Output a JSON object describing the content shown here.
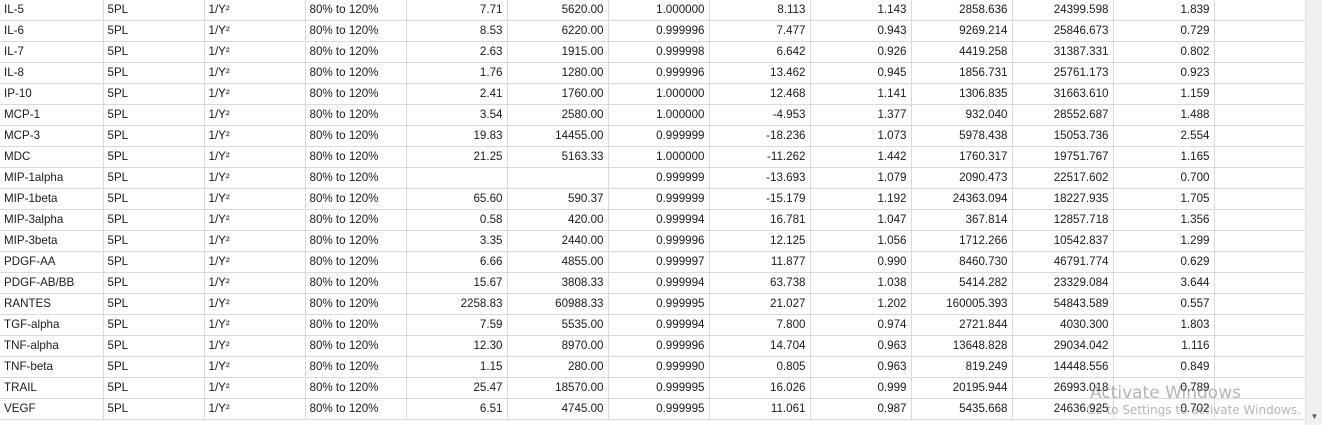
{
  "rows": [
    [
      "IL-5",
      "5PL",
      "1/Y²",
      "80% to 120%",
      "7.71",
      "5620.00",
      "1.000000",
      "8.113",
      "1.143",
      "2858.636",
      "24399.598",
      "1.839",
      ""
    ],
    [
      "IL-6",
      "5PL",
      "1/Y²",
      "80% to 120%",
      "8.53",
      "6220.00",
      "0.999996",
      "7.477",
      "0.943",
      "9269.214",
      "25846.673",
      "0.729",
      ""
    ],
    [
      "IL-7",
      "5PL",
      "1/Y²",
      "80% to 120%",
      "2.63",
      "1915.00",
      "0.999998",
      "6.642",
      "0.926",
      "4419.258",
      "31387.331",
      "0.802",
      ""
    ],
    [
      "IL-8",
      "5PL",
      "1/Y²",
      "80% to 120%",
      "1.76",
      "1280.00",
      "0.999996",
      "13.462",
      "0.945",
      "1856.731",
      "25761.173",
      "0.923",
      ""
    ],
    [
      "IP-10",
      "5PL",
      "1/Y²",
      "80% to 120%",
      "2.41",
      "1760.00",
      "1.000000",
      "12.468",
      "1.141",
      "1306.835",
      "31663.610",
      "1.159",
      ""
    ],
    [
      "MCP-1",
      "5PL",
      "1/Y²",
      "80% to 120%",
      "3.54",
      "2580.00",
      "1.000000",
      "-4.953",
      "1.377",
      "932.040",
      "28552.687",
      "1.488",
      ""
    ],
    [
      "MCP-3",
      "5PL",
      "1/Y²",
      "80% to 120%",
      "19.83",
      "14455.00",
      "0.999999",
      "-18.236",
      "1.073",
      "5978.438",
      "15053.736",
      "2.554",
      ""
    ],
    [
      "MDC",
      "5PL",
      "1/Y²",
      "80% to 120%",
      "21.25",
      "5163.33",
      "1.000000",
      "-11.262",
      "1.442",
      "1760.317",
      "19751.767",
      "1.165",
      ""
    ],
    [
      "MIP-1alpha",
      "5PL",
      "1/Y²",
      "80% to 120%",
      "",
      "",
      "0.999999",
      "-13.693",
      "1.079",
      "2090.473",
      "22517.602",
      "0.700",
      ""
    ],
    [
      "MIP-1beta",
      "5PL",
      "1/Y²",
      "80% to 120%",
      "65.60",
      "590.37",
      "0.999999",
      "-15.179",
      "1.192",
      "24363.094",
      "18227.935",
      "1.705",
      ""
    ],
    [
      "MIP-3alpha",
      "5PL",
      "1/Y²",
      "80% to 120%",
      "0.58",
      "420.00",
      "0.999994",
      "16.781",
      "1.047",
      "367.814",
      "12857.718",
      "1.356",
      ""
    ],
    [
      "MIP-3beta",
      "5PL",
      "1/Y²",
      "80% to 120%",
      "3.35",
      "2440.00",
      "0.999996",
      "12.125",
      "1.056",
      "1712.266",
      "10542.837",
      "1.299",
      ""
    ],
    [
      "PDGF-AA",
      "5PL",
      "1/Y²",
      "80% to 120%",
      "6.66",
      "4855.00",
      "0.999997",
      "11.877",
      "0.990",
      "8460.730",
      "46791.774",
      "0.629",
      ""
    ],
    [
      "PDGF-AB/BB",
      "5PL",
      "1/Y²",
      "80% to 120%",
      "15.67",
      "3808.33",
      "0.999994",
      "63.738",
      "1.038",
      "5414.282",
      "23329.084",
      "3.644",
      ""
    ],
    [
      "RANTES",
      "5PL",
      "1/Y²",
      "80% to 120%",
      "2258.83",
      "60988.33",
      "0.999995",
      "21.027",
      "1.202",
      "160005.393",
      "54843.589",
      "0.557",
      ""
    ],
    [
      "TGF-alpha",
      "5PL",
      "1/Y²",
      "80% to 120%",
      "7.59",
      "5535.00",
      "0.999994",
      "7.800",
      "0.974",
      "2721.844",
      "4030.300",
      "1.803",
      ""
    ],
    [
      "TNF-alpha",
      "5PL",
      "1/Y²",
      "80% to 120%",
      "12.30",
      "8970.00",
      "0.999996",
      "14.704",
      "0.963",
      "13648.828",
      "29034.042",
      "1.116",
      ""
    ],
    [
      "TNF-beta",
      "5PL",
      "1/Y²",
      "80% to 120%",
      "1.15",
      "280.00",
      "0.999990",
      "0.805",
      "0.963",
      "819.249",
      "14448.556",
      "0.849",
      ""
    ],
    [
      "TRAIL",
      "5PL",
      "1/Y²",
      "80% to 120%",
      "25.47",
      "18570.00",
      "0.999995",
      "16.026",
      "0.999",
      "20195.944",
      "26993.018",
      "0.789",
      ""
    ],
    [
      "VEGF",
      "5PL",
      "1/Y²",
      "80% to 120%",
      "6.51",
      "4745.00",
      "0.999995",
      "11.061",
      "0.987",
      "5435.668",
      "24636.925",
      "0.702",
      ""
    ]
  ],
  "watermark": {
    "title": "Activate Windows",
    "subtitle": "Go to Settings to activate Windows."
  },
  "scrollbar": {
    "down_icon": "▼"
  }
}
